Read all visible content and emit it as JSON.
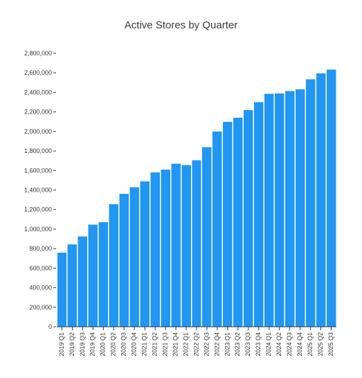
{
  "chart_data": {
    "type": "bar",
    "title": "Active Stores by Quarter",
    "xlabel": "",
    "ylabel": "",
    "ylim": [
      0,
      2800000
    ],
    "yticks": [
      0,
      200000,
      400000,
      600000,
      800000,
      1000000,
      1200000,
      1400000,
      1600000,
      1800000,
      2000000,
      2200000,
      2400000,
      2600000,
      2800000
    ],
    "grid": false,
    "bar_color": "#2196f3",
    "categories": [
      "2019 Q1",
      "2019 Q2",
      "2019 Q3",
      "2019 Q4",
      "2020 Q1",
      "2020 Q2",
      "2020 Q3",
      "2020 Q4",
      "2021 Q1",
      "2021 Q2",
      "2021 Q3",
      "2021 Q4",
      "2022 Q1",
      "2022 Q2",
      "2022 Q3",
      "2022 Q4",
      "2023 Q1",
      "2023 Q2",
      "2023 Q3",
      "2023 Q4",
      "2024 Q1",
      "2024 Q2",
      "2024 Q3",
      "2024 Q4",
      "2025 Q1",
      "2025 Q2",
      "2025 Q3"
    ],
    "values": [
      760000,
      845000,
      925000,
      1045000,
      1070000,
      1255000,
      1360000,
      1430000,
      1490000,
      1580000,
      1610000,
      1670000,
      1655000,
      1705000,
      1840000,
      2000000,
      2100000,
      2140000,
      2220000,
      2300000,
      2385000,
      2390000,
      2415000,
      2430000,
      2535000,
      2595000,
      2635000
    ]
  }
}
